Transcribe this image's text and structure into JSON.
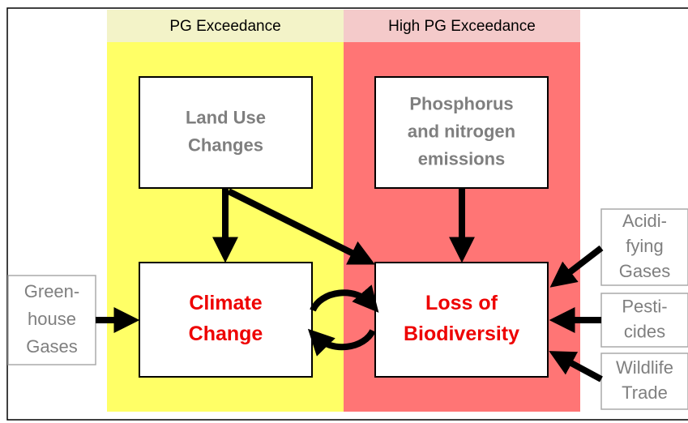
{
  "columns": [
    "PG Exceedance",
    "High PG Exceedance"
  ],
  "nodes": [
    {
      "lines": [
        "Land Use",
        "Changes"
      ]
    },
    {
      "lines": [
        "Phosphorus",
        "and nitrogen",
        "emissions"
      ]
    },
    {
      "lines": [
        "Climate",
        "Change"
      ]
    },
    {
      "lines": [
        "Loss of",
        "Biodiversity"
      ]
    },
    {
      "lines": [
        "Green-",
        "house",
        "Gases"
      ]
    },
    {
      "lines": [
        "Acidi-",
        "fying",
        "Gases"
      ]
    },
    {
      "lines": [
        "Pesti-",
        "cides"
      ]
    },
    {
      "lines": [
        "Wildlife",
        "Trade"
      ]
    }
  ]
}
